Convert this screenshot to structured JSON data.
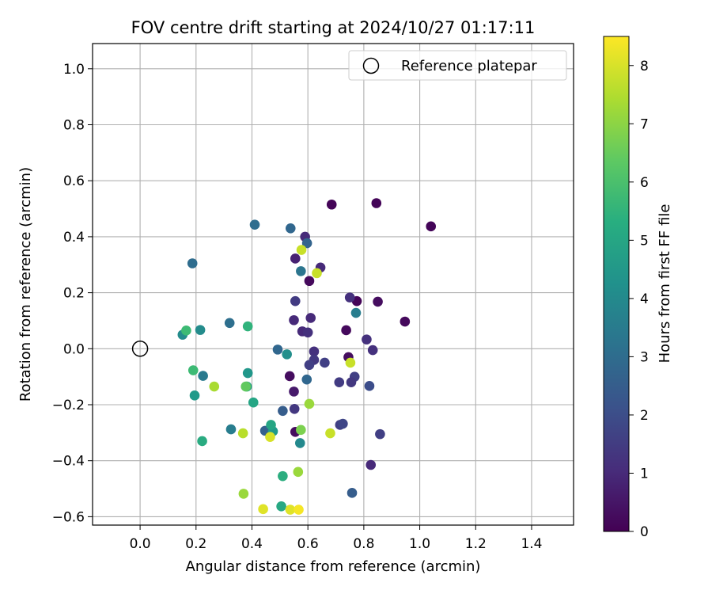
{
  "chart_data": {
    "type": "scatter",
    "title": "FOV centre drift starting at 2024/10/27 01:17:11",
    "xlabel": "Angular distance from reference (arcmin)",
    "ylabel": "Rotation from reference (arcmin)",
    "xlim": [
      -0.17,
      1.55
    ],
    "ylim": [
      -0.63,
      1.09
    ],
    "xticks": [
      0.0,
      0.2,
      0.4,
      0.6,
      0.8,
      1.0,
      1.2,
      1.4
    ],
    "yticks": [
      -0.6,
      -0.4,
      -0.2,
      0.0,
      0.2,
      0.4,
      0.6,
      0.8,
      1.0
    ],
    "grid": true,
    "legend_position": "top-right",
    "legend": [
      {
        "label": "Reference platepar",
        "marker": "open-circle"
      }
    ],
    "reference_point": {
      "x": 0.0,
      "y": 0.0
    },
    "colorbar": {
      "label": "Hours from first FF file",
      "colormap": "viridis",
      "range": [
        0,
        8.5
      ],
      "ticks": [
        0,
        1,
        2,
        3,
        4,
        5,
        6,
        7,
        8
      ]
    },
    "points": [
      {
        "x": 0.685,
        "y": 0.515,
        "t": 0.1
      },
      {
        "x": 0.845,
        "y": 0.52,
        "t": 0.1
      },
      {
        "x": 1.04,
        "y": 0.437,
        "t": 0.1
      },
      {
        "x": 0.605,
        "y": 0.242,
        "t": 0.2
      },
      {
        "x": 0.775,
        "y": 0.17,
        "t": 0.1
      },
      {
        "x": 0.85,
        "y": 0.168,
        "t": 0.3
      },
      {
        "x": 0.947,
        "y": 0.097,
        "t": 0.2
      },
      {
        "x": 0.737,
        "y": 0.066,
        "t": 0.2
      },
      {
        "x": 0.745,
        "y": -0.03,
        "t": 0.3
      },
      {
        "x": 0.535,
        "y": -0.098,
        "t": 0.3
      },
      {
        "x": 0.555,
        "y": -0.297,
        "t": 0.3
      },
      {
        "x": 0.55,
        "y": -0.153,
        "t": 0.6
      },
      {
        "x": 0.59,
        "y": 0.4,
        "t": 1.0
      },
      {
        "x": 0.555,
        "y": 0.322,
        "t": 0.8
      },
      {
        "x": 0.645,
        "y": 0.29,
        "t": 1.0
      },
      {
        "x": 0.555,
        "y": 0.17,
        "t": 1.5
      },
      {
        "x": 0.75,
        "y": 0.183,
        "t": 1.2
      },
      {
        "x": 0.55,
        "y": 0.102,
        "t": 1.0
      },
      {
        "x": 0.61,
        "y": 0.11,
        "t": 1.0
      },
      {
        "x": 0.58,
        "y": 0.062,
        "t": 1.0
      },
      {
        "x": 0.6,
        "y": 0.058,
        "t": 1.2
      },
      {
        "x": 0.81,
        "y": 0.033,
        "t": 1.2
      },
      {
        "x": 0.832,
        "y": -0.005,
        "t": 1.2
      },
      {
        "x": 0.622,
        "y": -0.01,
        "t": 1.2
      },
      {
        "x": 0.622,
        "y": -0.04,
        "t": 1.4
      },
      {
        "x": 0.605,
        "y": -0.058,
        "t": 1.6
      },
      {
        "x": 0.66,
        "y": -0.05,
        "t": 1.6
      },
      {
        "x": 0.767,
        "y": -0.1,
        "t": 1.6
      },
      {
        "x": 0.755,
        "y": -0.12,
        "t": 1.4
      },
      {
        "x": 0.712,
        "y": -0.12,
        "t": 1.5
      },
      {
        "x": 0.82,
        "y": -0.133,
        "t": 2.0
      },
      {
        "x": 0.552,
        "y": -0.215,
        "t": 1.4
      },
      {
        "x": 0.715,
        "y": -0.272,
        "t": 1.6
      },
      {
        "x": 0.725,
        "y": -0.268,
        "t": 1.8
      },
      {
        "x": 0.858,
        "y": -0.305,
        "t": 1.6
      },
      {
        "x": 0.825,
        "y": -0.415,
        "t": 1.0
      },
      {
        "x": 0.758,
        "y": -0.515,
        "t": 2.5
      },
      {
        "x": 0.597,
        "y": 0.377,
        "t": 2.7
      },
      {
        "x": 0.538,
        "y": 0.43,
        "t": 2.8
      },
      {
        "x": 0.41,
        "y": 0.443,
        "t": 3.0
      },
      {
        "x": 0.187,
        "y": 0.305,
        "t": 3.0
      },
      {
        "x": 0.575,
        "y": 0.277,
        "t": 3.3
      },
      {
        "x": 0.32,
        "y": 0.092,
        "t": 3.1
      },
      {
        "x": 0.492,
        "y": -0.003,
        "t": 2.8
      },
      {
        "x": 0.596,
        "y": -0.11,
        "t": 2.8
      },
      {
        "x": 0.51,
        "y": -0.222,
        "t": 2.5
      },
      {
        "x": 0.447,
        "y": -0.293,
        "t": 2.6
      },
      {
        "x": 0.225,
        "y": -0.097,
        "t": 3.5
      },
      {
        "x": 0.325,
        "y": -0.288,
        "t": 3.6
      },
      {
        "x": 0.772,
        "y": 0.128,
        "t": 3.6
      },
      {
        "x": 0.572,
        "y": -0.337,
        "t": 4.0
      },
      {
        "x": 0.215,
        "y": 0.067,
        "t": 4.1
      },
      {
        "x": 0.152,
        "y": 0.05,
        "t": 4.1
      },
      {
        "x": 0.525,
        "y": -0.02,
        "t": 4.2
      },
      {
        "x": 0.385,
        "y": -0.087,
        "t": 4.5
      },
      {
        "x": 0.195,
        "y": -0.167,
        "t": 4.6
      },
      {
        "x": 0.475,
        "y": -0.295,
        "t": 4.6
      },
      {
        "x": 0.382,
        "y": -0.135,
        "t": 5.0
      },
      {
        "x": 0.405,
        "y": -0.192,
        "t": 5.0
      },
      {
        "x": 0.468,
        "y": -0.272,
        "t": 5.0
      },
      {
        "x": 0.222,
        "y": -0.33,
        "t": 5.2
      },
      {
        "x": 0.51,
        "y": -0.455,
        "t": 5.3
      },
      {
        "x": 0.505,
        "y": -0.563,
        "t": 5.1
      },
      {
        "x": 0.385,
        "y": 0.08,
        "t": 5.5
      },
      {
        "x": 0.165,
        "y": 0.065,
        "t": 5.8
      },
      {
        "x": 0.19,
        "y": -0.077,
        "t": 5.8
      },
      {
        "x": 0.378,
        "y": -0.135,
        "t": 6.4
      },
      {
        "x": 0.575,
        "y": -0.29,
        "t": 6.8
      },
      {
        "x": 0.605,
        "y": -0.197,
        "t": 7.2
      },
      {
        "x": 0.565,
        "y": -0.44,
        "t": 7.2
      },
      {
        "x": 0.265,
        "y": -0.135,
        "t": 7.4
      },
      {
        "x": 0.37,
        "y": -0.518,
        "t": 7.2
      },
      {
        "x": 0.577,
        "y": 0.353,
        "t": 7.8
      },
      {
        "x": 0.632,
        "y": 0.27,
        "t": 7.8
      },
      {
        "x": 0.752,
        "y": -0.05,
        "t": 7.8
      },
      {
        "x": 0.368,
        "y": -0.302,
        "t": 7.6
      },
      {
        "x": 0.68,
        "y": -0.302,
        "t": 7.8
      },
      {
        "x": 0.465,
        "y": -0.315,
        "t": 8.0
      },
      {
        "x": 0.44,
        "y": -0.573,
        "t": 8.1
      },
      {
        "x": 0.537,
        "y": -0.575,
        "t": 8.1
      },
      {
        "x": 0.567,
        "y": -0.575,
        "t": 8.4
      }
    ]
  }
}
